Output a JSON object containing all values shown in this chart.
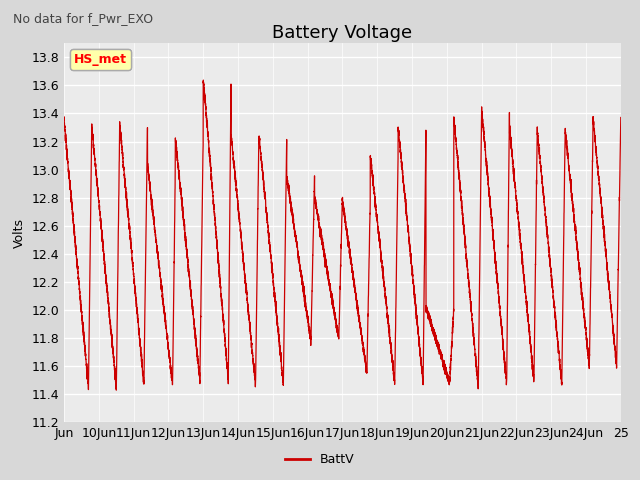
{
  "title": "Battery Voltage",
  "subtitle": "No data for f_Pwr_EXO",
  "ylabel": "Volts",
  "legend_label": "BattV",
  "legend_box_label": "HS_met",
  "ylim": [
    11.2,
    13.9
  ],
  "yticks": [
    11.2,
    11.4,
    11.6,
    11.8,
    12.0,
    12.2,
    12.4,
    12.6,
    12.8,
    13.0,
    13.2,
    13.4,
    13.6,
    13.8
  ],
  "xtick_labels": [
    "Jun",
    "10Jun",
    "11Jun",
    "12Jun",
    "13Jun",
    "14Jun",
    "15Jun",
    "16Jun",
    "17Jun",
    "18Jun",
    "19Jun",
    "20Jun",
    "21Jun",
    "22Jun",
    "23Jun",
    "24Jun",
    "25"
  ],
  "line_color": "#cc0000",
  "fig_bg_color": "#d8d8d8",
  "plot_bg_color": "#ebebeb",
  "grid_color": "#ffffff",
  "title_fontsize": 13,
  "label_fontsize": 9,
  "tick_fontsize": 9
}
